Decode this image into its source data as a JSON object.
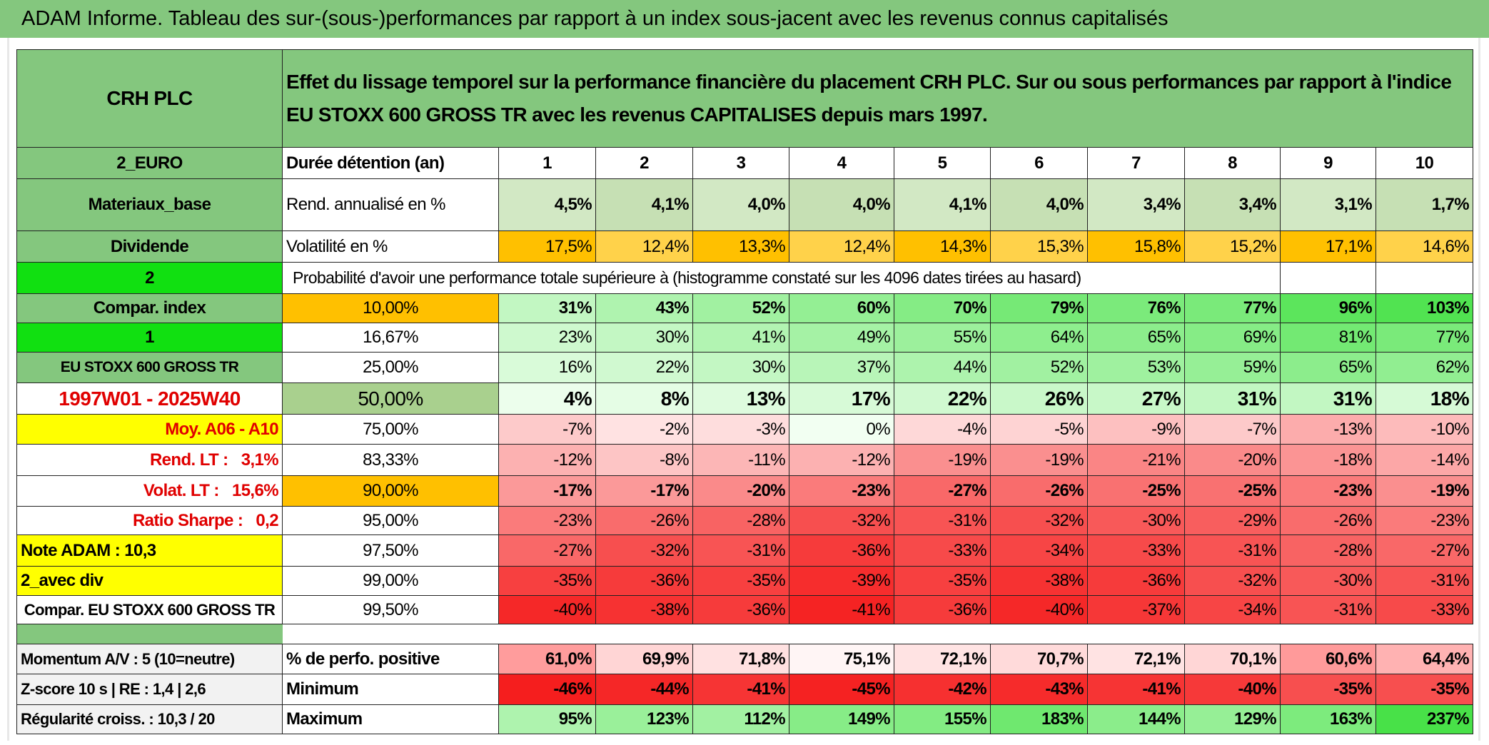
{
  "title": "ADAM Informe. Tableau des sur-(sous-)performances par rapport à un index sous-jacent avec les revenus connus capitalisés",
  "header": {
    "name": "CRH PLC",
    "description": "Effet du lissage temporel sur la performance financière du placement CRH PLC. Sur ou sous performances par rapport à l'indice EU STOXX 600 GROSS TR avec les revenus CAPITALISES depuis mars 1997."
  },
  "info_rows": [
    {
      "label": "2_EURO",
      "title": "Durée détention (an)",
      "cells": [
        "1",
        "2",
        "3",
        "4",
        "5",
        "6",
        "7",
        "8",
        "9",
        "10"
      ]
    },
    {
      "label": "Materiaux_base",
      "title": "Rend. annualisé en %",
      "cells": [
        "4,5%",
        "4,1%",
        "4,0%",
        "4,0%",
        "4,1%",
        "4,0%",
        "3,4%",
        "3,4%",
        "3,1%",
        "1,7%"
      ]
    },
    {
      "label": "Dividende",
      "title": "Volatilité en %",
      "cells": [
        "17,5%",
        "12,4%",
        "13,3%",
        "12,4%",
        "14,3%",
        "15,3%",
        "15,8%",
        "15,2%",
        "17,1%",
        "14,6%"
      ]
    }
  ],
  "probability": {
    "label": "2",
    "text": "Probabilité d'avoir une performance totale supérieure à (histogramme constaté sur les 4096 dates tirées au hasard)"
  },
  "percentile_rows": [
    {
      "label": "Compar. index",
      "percentile": "10,00%",
      "cells": [
        "31%",
        "43%",
        "52%",
        "60%",
        "70%",
        "79%",
        "76%",
        "77%",
        "96%",
        "103%"
      ]
    },
    {
      "label": "1",
      "percentile": "16,67%",
      "cells": [
        "23%",
        "30%",
        "41%",
        "49%",
        "55%",
        "64%",
        "65%",
        "69%",
        "81%",
        "77%"
      ]
    },
    {
      "label": "EU STOXX 600 GROSS TR",
      "percentile": "25,00%",
      "cells": [
        "16%",
        "22%",
        "30%",
        "37%",
        "44%",
        "52%",
        "53%",
        "59%",
        "65%",
        "62%"
      ]
    },
    {
      "label": "1997W01 - 2025W40",
      "percentile": "50,00%",
      "cells": [
        "4%",
        "8%",
        "13%",
        "17%",
        "22%",
        "26%",
        "27%",
        "31%",
        "31%",
        "18%"
      ]
    },
    {
      "label": "Moy. A06 - A10",
      "percentile": "75,00%",
      "cells": [
        "-7%",
        "-2%",
        "-3%",
        "0%",
        "-4%",
        "-5%",
        "-9%",
        "-7%",
        "-13%",
        "-10%"
      ]
    },
    {
      "label": "Rend. LT :   3,1%",
      "percentile": "83,33%",
      "cells": [
        "-12%",
        "-8%",
        "-11%",
        "-12%",
        "-19%",
        "-19%",
        "-21%",
        "-20%",
        "-18%",
        "-14%"
      ]
    },
    {
      "label": "Volat. LT :   15,6%",
      "percentile": "90,00%",
      "cells": [
        "-17%",
        "-17%",
        "-20%",
        "-23%",
        "-27%",
        "-26%",
        "-25%",
        "-25%",
        "-23%",
        "-19%"
      ]
    },
    {
      "label": "Ratio Sharpe :   0,2",
      "percentile": "95,00%",
      "cells": [
        "-23%",
        "-26%",
        "-28%",
        "-32%",
        "-31%",
        "-32%",
        "-30%",
        "-29%",
        "-26%",
        "-23%"
      ]
    },
    {
      "label": "Note ADAM : 10,3",
      "percentile": "97,50%",
      "cells": [
        "-27%",
        "-32%",
        "-31%",
        "-36%",
        "-33%",
        "-34%",
        "-33%",
        "-31%",
        "-28%",
        "-27%"
      ]
    },
    {
      "label": "2_avec div",
      "percentile": "99,00%",
      "cells": [
        "-35%",
        "-36%",
        "-35%",
        "-39%",
        "-35%",
        "-38%",
        "-36%",
        "-32%",
        "-30%",
        "-31%"
      ]
    },
    {
      "label": "Compar. EU STOXX 600 GROSS TR",
      "percentile": "99,50%",
      "cells": [
        "-40%",
        "-38%",
        "-36%",
        "-41%",
        "-36%",
        "-40%",
        "-37%",
        "-34%",
        "-31%",
        "-33%"
      ]
    }
  ],
  "summary_rows": [
    {
      "label": "Momentum A/V : 5 (10=neutre)",
      "title": "% de perfo. positive",
      "cells": [
        "61,0%",
        "69,9%",
        "71,8%",
        "75,1%",
        "72,1%",
        "70,7%",
        "72,1%",
        "70,1%",
        "60,6%",
        "64,4%"
      ]
    },
    {
      "label": "Z-score 10 s | RE : 1,4 | 2,6",
      "title": "Minimum",
      "cells": [
        "-46%",
        "-44%",
        "-41%",
        "-45%",
        "-42%",
        "-43%",
        "-41%",
        "-40%",
        "-35%",
        "-35%"
      ]
    },
    {
      "label": "Régularité croiss. : 10,3 / 20",
      "title": "Maximum",
      "cells": [
        "95%",
        "123%",
        "112%",
        "149%",
        "155%",
        "183%",
        "144%",
        "129%",
        "163%",
        "237%"
      ]
    }
  ]
}
